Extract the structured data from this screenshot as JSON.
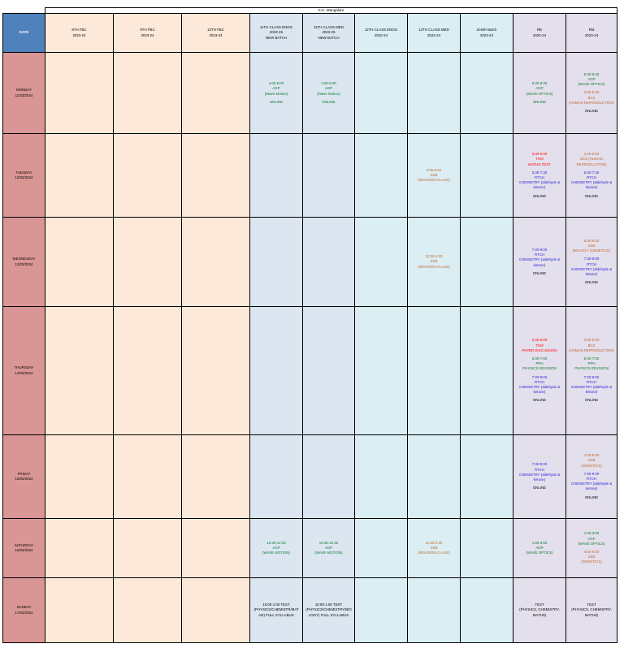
{
  "title": "K.K. Mangalam",
  "headers": [
    {
      "lines": [
        "DATE"
      ]
    },
    {
      "lines": [
        "8TH FBC",
        "2023-24"
      ]
    },
    {
      "lines": [
        "9TH FBC",
        "2023-24"
      ]
    },
    {
      "lines": [
        "10TH FBC",
        "2023-24"
      ]
    },
    {
      "lines": [
        "11TH CLASS ENGG",
        "2023-25",
        "NEW BATCH"
      ]
    },
    {
      "lines": [
        "11TH CLASS MED",
        "2023-25",
        "NEW BATCH"
      ]
    },
    {
      "lines": [
        "12TH CLASS ENGG",
        "2022-24"
      ]
    },
    {
      "lines": [
        "12TH CLASS MED",
        "2022-24"
      ]
    },
    {
      "lines": [
        "Zenith Batch",
        "2023-24"
      ]
    },
    {
      "lines": [
        "RE",
        "2022-24"
      ]
    },
    {
      "lines": [
        "RM",
        "2023-24"
      ]
    }
  ],
  "colors": {
    "date_header": "#4f81bd",
    "day_cell": "#da9694",
    "fbc_columns": "#fde9d9",
    "class11_columns": "#dce6f1",
    "class12_zenith_columns": "#daeef3",
    "re_rm_columns": "#e4dfec",
    "text_green": "#0a7a2a",
    "text_orange": "#c0662b",
    "text_red": "#ff0000",
    "text_blue": "#1f1fd6"
  },
  "rows": [
    {
      "day": [
        "MONDAY",
        "11/03/2024"
      ],
      "cells": [
        [],
        [],
        [],
        [
          {
            "color": "green",
            "lines": [
              "4:00-6:00",
              "AGP",
              "(Wave Motion)"
            ]
          },
          {
            "color": "green",
            "lines": [
              "ONLINE"
            ]
          }
        ],
        [
          {
            "color": "green",
            "lines": [
              "4:00-6:00",
              "AGP",
              "(Wave Motion)"
            ]
          },
          {
            "color": "green",
            "lines": [
              "ONLINE"
            ]
          }
        ],
        [],
        [],
        [],
        [
          {
            "color": "green",
            "lines": [
              "6:30-8:30",
              "AGP",
              "(WAVE OPTICS)"
            ]
          },
          {
            "color": "green",
            "lines": [
              "ONLINE"
            ]
          }
        ],
        [
          {
            "color": "green",
            "lines": [
              "6:30-8:30",
              "AGP",
              "(WAVE OPTICS)"
            ]
          },
          {
            "color": "orange",
            "lines": [
              "3:30-5:30",
              "BCZ",
              "(HUMAN REPRODUCTION)"
            ]
          },
          {
            "color": "black",
            "lines": [
              "ONLINE"
            ]
          }
        ]
      ]
    },
    {
      "day": [
        "TUESDAY",
        "12/03/2024"
      ],
      "cells": [
        [],
        [],
        [],
        [],
        [],
        [],
        [
          {
            "color": "orange",
            "lines": [
              "4:00-6:00",
              "SSB",
              "(REVISION CLASS)"
            ]
          }
        ],
        [],
        [
          {
            "color": "red",
            "lines": [
              "3:30-5:00",
              "TKM",
              "MATHS TEST"
            ]
          },
          {
            "color": "blue",
            "lines": [
              "5:30-7:30",
              "RTCH",
              "CHEMISTRY (aldehyde &",
              "ketone)"
            ]
          },
          {
            "color": "black",
            "lines": [
              "ONLINE"
            ]
          }
        ],
        [
          {
            "color": "orange",
            "lines": [
              "3:30-5:00",
              "BCZ (HUMAN",
              "REPRODUCTION)"
            ]
          },
          {
            "color": "blue",
            "lines": [
              "5:30-7:30",
              "RTCH",
              "CHEMISTRY (aldehyde &",
              "ketone)"
            ]
          },
          {
            "color": "black",
            "lines": [
              "ONLINE"
            ]
          }
        ]
      ]
    },
    {
      "day": [
        "WEDNESDAY",
        "13/03/2024"
      ],
      "cells": [
        [],
        [],
        [],
        [],
        [],
        [],
        [
          {
            "color": "orange",
            "lines": [
              "12:30-2:30",
              "SSB",
              "(REVISION CLASS)"
            ]
          }
        ],
        [],
        [
          {
            "color": "blue",
            "lines": [
              "7:30-9:00",
              "RTCH",
              "CHEMISTRY (aldehyde &",
              "ketone)"
            ]
          },
          {
            "color": "black",
            "lines": [
              "ONLINE"
            ]
          }
        ],
        [
          {
            "color": "orange",
            "lines": [
              "5:00-6:30",
              "SSB",
              "BIOLOGY (GENETICS)"
            ]
          },
          {
            "color": "blue",
            "lines": [
              "7:30-9:00",
              "RTCH",
              "CHEMISTRY (aldehyde &",
              "ketone)"
            ]
          },
          {
            "color": "black",
            "lines": [
              "ONLINE"
            ]
          }
        ]
      ]
    },
    {
      "day": [
        "THURSDAY",
        "14/03/2024"
      ],
      "cells": [
        [],
        [],
        [],
        [],
        [],
        [],
        [],
        [],
        [
          {
            "color": "red",
            "lines": [
              "3:30-5:00",
              "TKM",
              "PAPER DISCUSSION"
            ]
          },
          {
            "color": "green",
            "lines": [
              "5:30-7:00",
              "PPH",
              "PHYSICS REVISION"
            ]
          },
          {
            "color": "blue",
            "lines": [
              "7:30-9:00",
              "RTCH",
              "CHEMISTRY (aldehyde &",
              "ketone)"
            ]
          },
          {
            "color": "black",
            "lines": [
              "ONLINE"
            ]
          }
        ],
        [
          {
            "color": "orange",
            "lines": [
              "3:30-5:00",
              "BCZ",
              "(HUMAN REPRODUCTION)"
            ]
          },
          {
            "color": "green",
            "lines": [
              "5:30-7:00",
              "PPH",
              "PHYSICS REVISION"
            ]
          },
          {
            "color": "blue",
            "lines": [
              "7:30-9:00",
              "RTCH",
              "CHEMISTRY (aldehyde &",
              "ketone)"
            ]
          },
          {
            "color": "black",
            "lines": [
              "ONLINE"
            ]
          }
        ]
      ]
    },
    {
      "day": [
        "FRIDAY",
        "15/03/2024"
      ],
      "cells": [
        [],
        [],
        [],
        [],
        [],
        [],
        [],
        [],
        [
          {
            "color": "blue",
            "lines": [
              "7:30-9:00",
              "RTCH",
              "CHEMISTRY (aldehyde &",
              "ketone)"
            ]
          },
          {
            "color": "black",
            "lines": [
              "ONLINE"
            ]
          }
        ],
        [
          {
            "color": "orange",
            "lines": [
              "4:00-6:00",
              "SSB",
              "(GENETICS)"
            ]
          },
          {
            "color": "blue",
            "lines": [
              "7:30-9:00",
              "RTCH",
              "CHEMISTRY (aldehyde &",
              "ketone)"
            ]
          },
          {
            "color": "black",
            "lines": [
              "ONLINE"
            ]
          }
        ]
      ]
    },
    {
      "day": [
        "SATURDAY",
        "16/03/2024"
      ],
      "cells": [
        [],
        [],
        [],
        [
          {
            "color": "green",
            "lines": [
              "10:30-12:30",
              "AGP",
              "(WAVE MOTION)"
            ]
          }
        ],
        [
          {
            "color": "green",
            "lines": [
              "10:30-12:30",
              "AGP",
              "(WAVE MOTION)"
            ]
          }
        ],
        [],
        [
          {
            "color": "orange",
            "lines": [
              "12:30-2:30",
              "SSB",
              "(REVISION CLASS)"
            ]
          }
        ],
        [],
        [
          {
            "color": "green",
            "lines": [
              "1:00-3:00",
              "AGP",
              "(WAVE OPTICS)"
            ]
          }
        ],
        [
          {
            "color": "green",
            "lines": [
              "1:00-3:00",
              "AGP",
              "(WAVE OPTICS)"
            ]
          },
          {
            "color": "orange",
            "lines": [
              "4:00-6:00",
              "SSB",
              "(GENETICS)"
            ]
          }
        ]
      ]
    },
    {
      "day": [
        "SUNDAY",
        "17/03/2024"
      ],
      "cells": [
        [],
        [],
        [],
        [
          {
            "color": "black",
            "lines": [
              "10:00-1:00 TEST",
              "(PHYSICS/CHEMISTR/MAT",
              "HS) FULL SYLLABUS"
            ]
          }
        ],
        [
          {
            "color": "black",
            "lines": [
              "10:00-1:00 TEST",
              "(PHYSICS/CHEMISTRY/BIO",
              "LOGY) FULL SYLLABUS"
            ]
          }
        ],
        [],
        [],
        [],
        [
          {
            "color": "black",
            "lines": [
              "TEST",
              "(PHYSICS, CHEMISTRY,",
              "MATHS)"
            ]
          }
        ],
        [
          {
            "color": "black",
            "lines": [
              "TEST",
              "(PHYSICS, CHEMISTRY,",
              "MATHS)"
            ]
          }
        ]
      ]
    }
  ]
}
